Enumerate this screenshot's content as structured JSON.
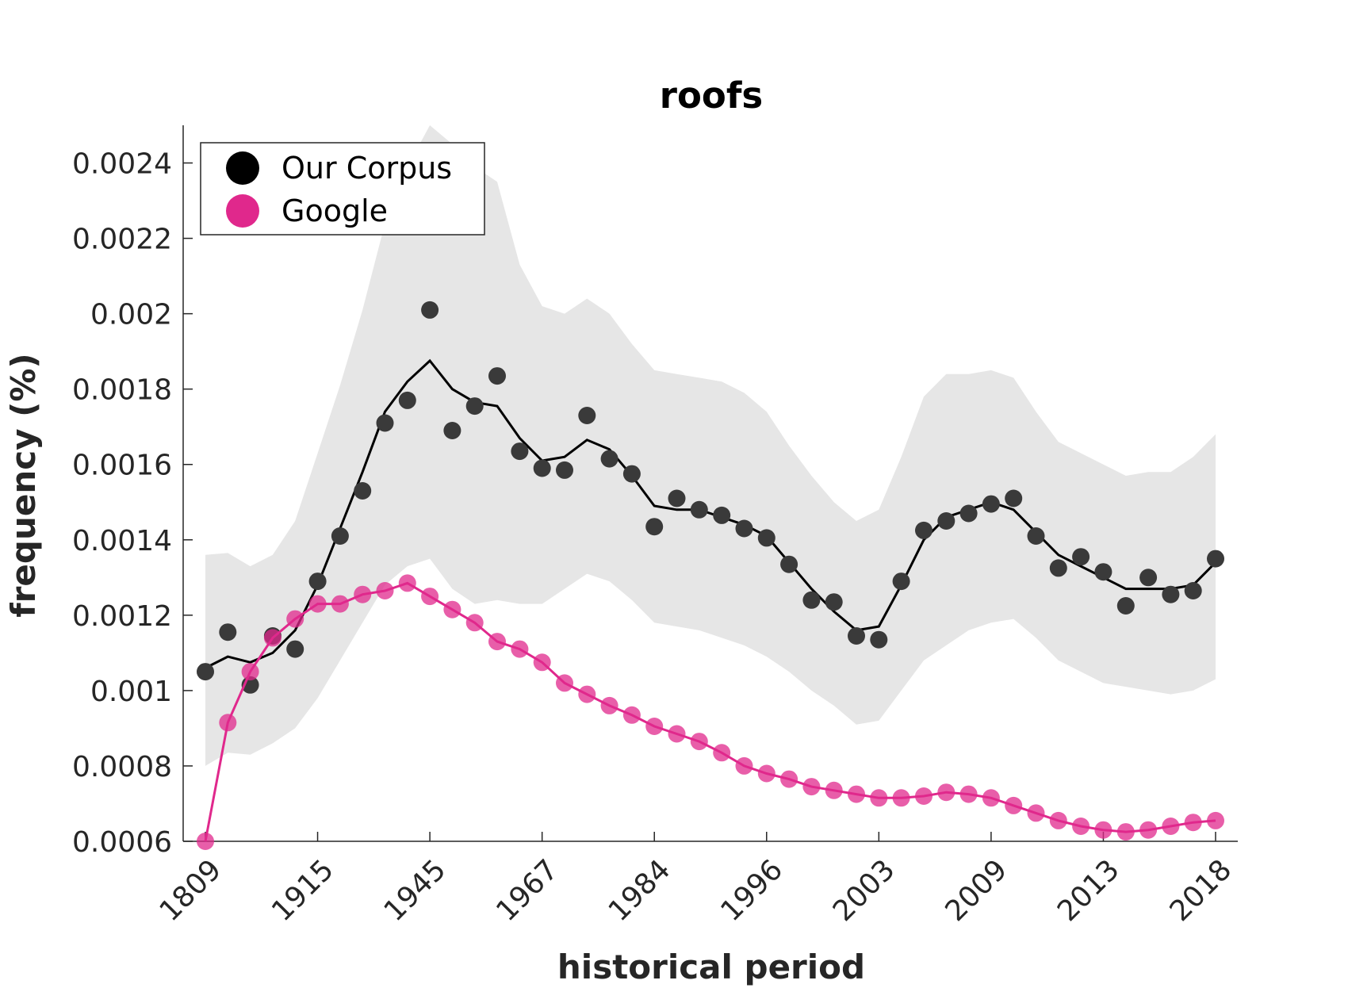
{
  "chart_data": {
    "type": "scatter",
    "title": "roofs",
    "xlabel": "historical period",
    "ylabel": "frequency (%)",
    "ylim": [
      0.0006,
      0.0025
    ],
    "y_ticks": [
      "0.0006",
      "0.0008",
      "0.001",
      "0.0012",
      "0.0014",
      "0.0016",
      "0.0018",
      "0.002",
      "0.0022",
      "0.0024"
    ],
    "x_tick_labels": [
      {
        "index": 0,
        "label": "1809"
      },
      {
        "index": 5,
        "label": "1915"
      },
      {
        "index": 10,
        "label": "1945"
      },
      {
        "index": 15,
        "label": "1967"
      },
      {
        "index": 20,
        "label": "1984"
      },
      {
        "index": 25,
        "label": "1996"
      },
      {
        "index": 30,
        "label": "2003"
      },
      {
        "index": 35,
        "label": "2009"
      },
      {
        "index": 40,
        "label": "2013"
      },
      {
        "index": 45,
        "label": "2018"
      }
    ],
    "legend": {
      "placement": "top-left",
      "entries": [
        "Our Corpus",
        "Google"
      ]
    },
    "colors": {
      "corpus": "#3a3a3a",
      "corpus_line": "#000000",
      "google": "#e0288c",
      "band": "#e6e6e6"
    },
    "series": [
      {
        "name": "Our Corpus",
        "points": [
          0.00105,
          0.001155,
          0.001015,
          0.001145,
          0.00111,
          0.00129,
          0.00141,
          0.00153,
          0.00171,
          0.00177,
          0.00201,
          0.00169,
          0.001755,
          0.001835,
          0.001635,
          0.00159,
          0.001585,
          0.00173,
          0.001615,
          0.001575,
          0.001435,
          0.00151,
          0.00148,
          0.001465,
          0.00143,
          0.001405,
          0.001335,
          0.00124,
          0.001235,
          0.001145,
          0.001135,
          0.00129,
          0.001425,
          0.00145,
          0.00147,
          0.001495,
          0.00151,
          0.00141,
          0.001325,
          0.001355,
          0.001315,
          0.001225,
          0.0013,
          0.001255,
          0.001265,
          0.00135
        ],
        "smoothed": [
          0.00106,
          0.00109,
          0.001075,
          0.0011,
          0.00116,
          0.00128,
          0.00143,
          0.00158,
          0.00174,
          0.00182,
          0.001875,
          0.0018,
          0.001765,
          0.001755,
          0.00167,
          0.00161,
          0.00162,
          0.001665,
          0.00164,
          0.00157,
          0.00149,
          0.00148,
          0.00148,
          0.00146,
          0.00144,
          0.00141,
          0.00134,
          0.00127,
          0.00121,
          0.00116,
          0.00117,
          0.00128,
          0.0014,
          0.00146,
          0.00148,
          0.0015,
          0.00148,
          0.00142,
          0.00136,
          0.00133,
          0.0013,
          0.00127,
          0.00127,
          0.00127,
          0.00128,
          0.00134
        ],
        "band_upper": [
          0.00136,
          0.001365,
          0.00133,
          0.00136,
          0.00145,
          0.00163,
          0.00181,
          0.00201,
          0.00224,
          0.00239,
          0.0025,
          0.00245,
          0.00239,
          0.00235,
          0.00213,
          0.00202,
          0.002,
          0.00204,
          0.002,
          0.00192,
          0.00185,
          0.00184,
          0.00183,
          0.00182,
          0.00179,
          0.00174,
          0.00165,
          0.00157,
          0.0015,
          0.00145,
          0.00148,
          0.00162,
          0.00178,
          0.00184,
          0.00184,
          0.00185,
          0.00183,
          0.00174,
          0.00166,
          0.00163,
          0.0016,
          0.00157,
          0.00158,
          0.00158,
          0.00162,
          0.00168
        ],
        "band_lower": [
          0.0008,
          0.000835,
          0.00083,
          0.00086,
          0.0009,
          0.00098,
          0.00108,
          0.00118,
          0.00128,
          0.00133,
          0.00135,
          0.00127,
          0.00123,
          0.00124,
          0.00123,
          0.00123,
          0.00127,
          0.00131,
          0.00129,
          0.00124,
          0.00118,
          0.00117,
          0.00116,
          0.00114,
          0.00112,
          0.00109,
          0.00105,
          0.001,
          0.00096,
          0.00091,
          0.00092,
          0.001,
          0.00108,
          0.00112,
          0.00116,
          0.00118,
          0.00119,
          0.00114,
          0.00108,
          0.00105,
          0.00102,
          0.00101,
          0.001,
          0.00099,
          0.001,
          0.00103
        ]
      },
      {
        "name": "Google",
        "points": [
          0.0006,
          0.000915,
          0.00105,
          0.00114,
          0.00119,
          0.00123,
          0.00123,
          0.001255,
          0.001265,
          0.001285,
          0.00125,
          0.001215,
          0.00118,
          0.00113,
          0.00111,
          0.001075,
          0.00102,
          0.00099,
          0.00096,
          0.000935,
          0.000905,
          0.000885,
          0.000865,
          0.000835,
          0.0008,
          0.00078,
          0.000765,
          0.000745,
          0.000735,
          0.000725,
          0.000715,
          0.000715,
          0.00072,
          0.00073,
          0.000725,
          0.000715,
          0.000695,
          0.000675,
          0.000655,
          0.00064,
          0.00063,
          0.000625,
          0.00063,
          0.00064,
          0.00065,
          0.000655
        ]
      }
    ]
  }
}
